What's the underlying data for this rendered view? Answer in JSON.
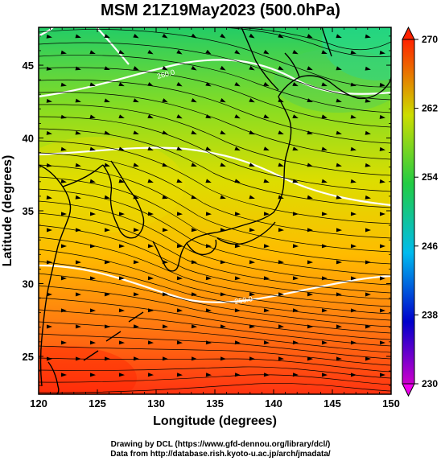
{
  "title": "MSM 21Z19May2023 (500.0hPa)",
  "footer": {
    "line1": "Drawing by DCL (https://www.gfd-dennou.org/library/dcl/)",
    "line2": "Data from http://database.rish.kyoto-u.ac.jp/arch/jmadata/"
  },
  "chart_data": {
    "type": "heatmap",
    "xlabel": "Longitude (degrees)",
    "ylabel": "Latitude  (degrees)",
    "xlim": [
      120,
      150
    ],
    "ylim": [
      22.4,
      47.6
    ],
    "x_ticks": [
      "120",
      "125",
      "130",
      "135",
      "140",
      "145",
      "150"
    ],
    "y_ticks": [
      "25",
      "30",
      "35",
      "40",
      "45"
    ],
    "colorbar": {
      "ticks": [
        "230",
        "238",
        "246",
        "254",
        "262",
        "270"
      ],
      "range": [
        230,
        270
      ],
      "colors": [
        "#cc00cc",
        "#0000cc",
        "#00bbee",
        "#22cc44",
        "#ccdd00",
        "#ff2200"
      ]
    },
    "contour_labels": [
      "260.0",
      "260.0"
    ],
    "layers": [
      "temperature",
      "wind-streamlines",
      "coastlines"
    ]
  }
}
